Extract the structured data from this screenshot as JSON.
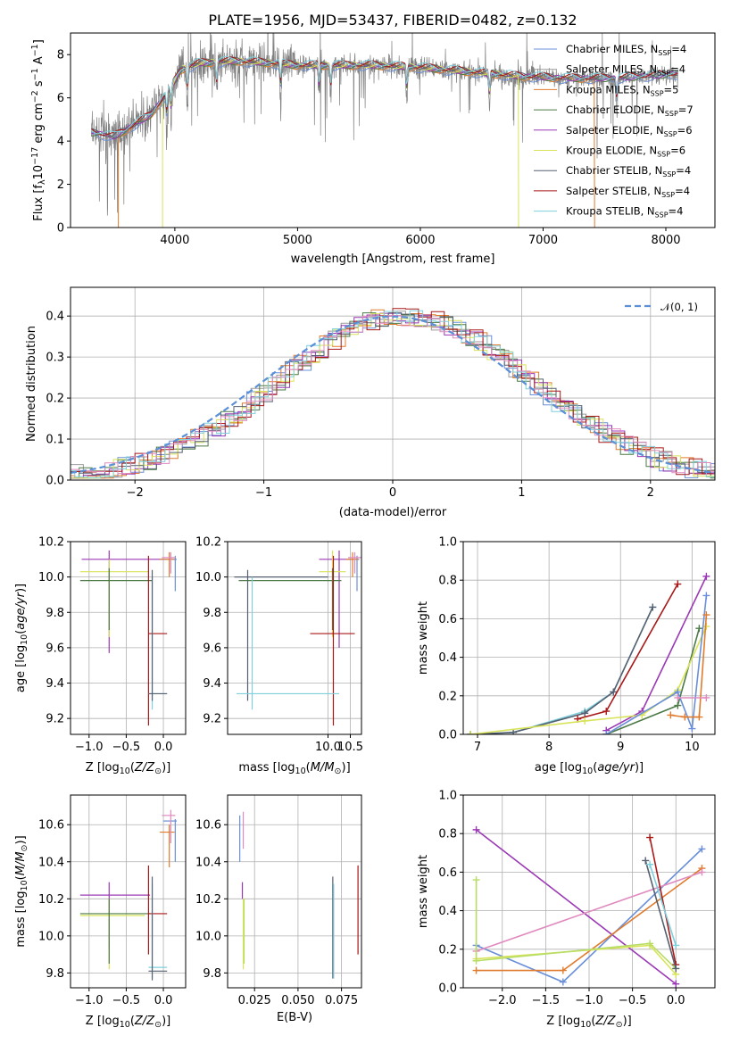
{
  "colors": {
    "Chabrier MILES": "#6a8fd8",
    "Salpeter MILES": "#9b9b9b",
    "Kroupa MILES": "#e07b2e",
    "Chabrier ELODIE": "#4d7a47",
    "Salpeter ELODIE": "#9b38b5",
    "Kroupa ELODIE": "#d8e35a",
    "Chabrier STELIB": "#556070",
    "Salpeter STELIB": "#a81818",
    "Kroupa STELIB": "#7fcfdc",
    "pink": "#e08bbf",
    "green2": "#b7dd66",
    "normal": "#5b8fd6"
  },
  "chart_data": [
    {
      "id": "spectrum",
      "type": "line",
      "title": "PLATE=1956, MJD=53437, FIBERID=0482, z=0.132",
      "xlabel": "wavelength [Angstrom, rest frame]",
      "ylabel": "Flux [f_λ 10^-17 erg cm^-2 s^-1 A^-1]",
      "xlim": [
        3150,
        8400
      ],
      "ylim": [
        0,
        9
      ],
      "xticks": [
        "4000",
        "5000",
        "6000",
        "7000",
        "8000"
      ],
      "yticks": [
        "0",
        "2",
        "4",
        "6",
        "8"
      ],
      "legend_position": "top-right",
      "legend": [
        {
          "name": "Chabrier MILES",
          "label": "Chabrier MILES, N",
          "sub": "SSP",
          "n": "=4"
        },
        {
          "name": "Salpeter MILES",
          "label": "Salpeter MILES, N",
          "sub": "SSP",
          "n": "=4"
        },
        {
          "name": "Kroupa MILES",
          "label": "Kroupa MILES, N",
          "sub": "SSP",
          "n": "=5"
        },
        {
          "name": "Chabrier ELODIE",
          "label": "Chabrier ELODIE, N",
          "sub": "SSP",
          "n": "=7"
        },
        {
          "name": "Salpeter ELODIE",
          "label": "Salpeter ELODIE, N",
          "sub": "SSP",
          "n": "=6"
        },
        {
          "name": "Kroupa ELODIE",
          "label": "Kroupa ELODIE, N",
          "sub": "SSP",
          "n": "=6"
        },
        {
          "name": "Chabrier STELIB",
          "label": "Chabrier STELIB, N",
          "sub": "SSP",
          "n": "=4"
        },
        {
          "name": "Salpeter STELIB",
          "label": "Salpeter STELIB, N",
          "sub": "SSP",
          "n": "=4"
        },
        {
          "name": "Kroupa STELIB",
          "label": "Kroupa STELIB, N",
          "sub": "SSP",
          "n": "=4"
        }
      ],
      "model_range": [
        {
          "name": "Kroupa MILES",
          "x": [
            3540,
            7420
          ]
        },
        {
          "name": "Kroupa ELODIE",
          "x": [
            3900,
            6800
          ]
        },
        {
          "name": "Kroupa STELIB",
          "x": [
            3320,
            8100
          ]
        }
      ],
      "continuum": [
        [
          3320,
          4.4
        ],
        [
          3500,
          4.2
        ],
        [
          3600,
          4.5
        ],
        [
          3800,
          5.2
        ],
        [
          3950,
          6.3
        ],
        [
          4050,
          7.3
        ],
        [
          4200,
          7.6
        ],
        [
          4500,
          7.7
        ],
        [
          4800,
          7.6
        ],
        [
          5000,
          7.5
        ],
        [
          5300,
          7.5
        ],
        [
          5600,
          7.5
        ],
        [
          6000,
          7.4
        ],
        [
          6400,
          7.2
        ],
        [
          6800,
          7.0
        ],
        [
          7200,
          6.9
        ],
        [
          7600,
          6.9
        ],
        [
          8100,
          7.1
        ]
      ]
    },
    {
      "id": "residuals",
      "type": "line",
      "xlabel": "(data-model)/error",
      "ylabel": "Normed distribution",
      "xlim": [
        -2.5,
        2.5
      ],
      "ylim": [
        0,
        0.47
      ],
      "xticks": [
        "−2",
        "−1",
        "0",
        "1",
        "2"
      ],
      "yticks": [
        "0.0",
        "0.1",
        "0.2",
        "0.3",
        "0.4"
      ],
      "legend": "𝒩(0, 1)",
      "legend_position": "top-right",
      "bin_width": 0.1
    },
    {
      "id": "age_vs_Z",
      "type": "scatter",
      "xlabel": "Z [log10(Z/Z⊙)]",
      "ylabel": "age [log10(age/yr)]",
      "xlim": [
        -1.25,
        0.3
      ],
      "ylim": [
        9.11,
        10.2
      ],
      "xticks": [
        "−1.0",
        "−0.5",
        "0.0"
      ],
      "yticks": [
        "9.2",
        "9.4",
        "9.6",
        "9.8",
        "10.0",
        "10.2"
      ],
      "points": [
        {
          "c": "Salpeter ELODIE",
          "x": -0.73,
          "xe": [
            -1.1,
            0.0
          ],
          "y": 10.1,
          "ye": [
            9.57,
            10.15
          ]
        },
        {
          "c": "Kroupa ELODIE",
          "x": -0.73,
          "xe": [
            -1.12,
            -0.2
          ],
          "y": 10.03,
          "ye": [
            9.66,
            10.1
          ]
        },
        {
          "c": "Chabrier ELODIE",
          "x": -0.73,
          "xe": [
            -1.12,
            -0.15
          ],
          "y": 9.98,
          "ye": [
            9.7,
            10.05
          ]
        },
        {
          "c": "Salpeter STELIB",
          "x": -0.2,
          "xe": [
            -0.2,
            0.05
          ],
          "y": 9.68,
          "ye": [
            9.16,
            10.12
          ]
        },
        {
          "c": "Kroupa STELIB",
          "x": -0.15,
          "xe": [
            -0.2,
            0.05
          ],
          "y": 9.34,
          "ye": [
            9.25,
            10.0
          ]
        },
        {
          "c": "Chabrier STELIB",
          "x": -0.15,
          "xe": [
            -0.2,
            0.05
          ],
          "y": 9.34,
          "ye": [
            9.3,
            10.04
          ]
        },
        {
          "c": "Chabrier MILES",
          "x": 0.16,
          "xe": [
            0.0,
            0.18
          ],
          "y": 10.1,
          "ye": [
            9.92,
            10.12
          ]
        },
        {
          "c": "Kroupa MILES",
          "x": 0.08,
          "xe": [
            -0.05,
            0.15
          ],
          "y": 10.1,
          "ye": [
            10.0,
            10.14
          ]
        },
        {
          "c": "pink",
          "x": 0.1,
          "xe": [
            -0.02,
            0.16
          ],
          "y": 10.11,
          "ye": [
            10.02,
            10.14
          ]
        }
      ]
    },
    {
      "id": "age_vs_mass",
      "type": "scatter",
      "xlabel": "mass [log10(M/M⊙)]",
      "ylabel": "",
      "xlim": [
        7.75,
        10.75
      ],
      "ylim": [
        9.11,
        10.2
      ],
      "xticks": [
        "10.0",
        "10.5"
      ],
      "yticks": [
        "9.2",
        "9.4",
        "9.6",
        "9.8",
        "10.0",
        "10.2"
      ],
      "points": [
        {
          "c": "Salpeter ELODIE",
          "x": 10.25,
          "xe": [
            9.8,
            10.5
          ],
          "y": 10.1,
          "ye": [
            9.6,
            10.15
          ]
        },
        {
          "c": "Kroupa ELODIE",
          "x": 10.1,
          "xe": [
            9.8,
            10.4
          ],
          "y": 10.03,
          "ye": [
            9.66,
            10.15
          ]
        },
        {
          "c": "Chabrier ELODIE",
          "x": 10.1,
          "xe": [
            8.0,
            10.3
          ],
          "y": 9.98,
          "ye": [
            9.7,
            10.05
          ]
        },
        {
          "c": "Chabrier STELIB",
          "x": 8.2,
          "xe": [
            7.9,
            10.0
          ],
          "y": 10.0,
          "ye": [
            9.3,
            10.04
          ]
        },
        {
          "c": "Salpeter STELIB",
          "x": 10.12,
          "xe": [
            9.6,
            10.6
          ],
          "y": 9.68,
          "ye": [
            9.16,
            10.12
          ]
        },
        {
          "c": "Kroupa STELIB",
          "x": 8.3,
          "xe": [
            7.95,
            10.25
          ],
          "y": 9.34,
          "ye": [
            9.25,
            10.0
          ]
        },
        {
          "c": "Chabrier MILES",
          "x": 10.65,
          "xe": [
            10.45,
            10.7
          ],
          "y": 10.1,
          "ye": [
            9.92,
            10.12
          ]
        },
        {
          "c": "Kroupa MILES",
          "x": 10.55,
          "xe": [
            10.4,
            10.68
          ],
          "y": 10.1,
          "ye": [
            10.0,
            10.14
          ]
        },
        {
          "c": "pink",
          "x": 10.6,
          "xe": [
            10.45,
            10.75
          ],
          "y": 10.11,
          "ye": [
            10.02,
            10.14
          ]
        }
      ]
    },
    {
      "id": "weight_vs_age",
      "type": "line",
      "xlabel": "age [log10(age/yr)]",
      "ylabel": "mass weight",
      "xlim": [
        6.8,
        10.32
      ],
      "ylim": [
        0,
        1.0
      ],
      "xticks": [
        "7",
        "8",
        "9",
        "10"
      ],
      "yticks": [
        "0.0",
        "0.2",
        "0.4",
        "0.6",
        "0.8",
        "1.0"
      ],
      "series": [
        {
          "c": "Kroupa STELIB",
          "x": [
            6.9,
            7.5,
            8.5,
            8.9,
            9.45
          ],
          "y": [
            0.0,
            0.01,
            0.12,
            0.22,
            0.66
          ]
        },
        {
          "c": "Chabrier STELIB",
          "x": [
            6.9,
            7.5,
            8.5,
            8.9,
            9.45
          ],
          "y": [
            0.0,
            0.01,
            0.11,
            0.22,
            0.66
          ]
        },
        {
          "c": "Salpeter STELIB",
          "x": [
            8.4,
            8.8,
            9.8
          ],
          "y": [
            0.08,
            0.12,
            0.78
          ]
        },
        {
          "c": "Salpeter ELODIE",
          "x": [
            8.8,
            9.3,
            10.2
          ],
          "y": [
            0.02,
            0.12,
            0.82
          ]
        },
        {
          "c": "Chabrier ELODIE",
          "x": [
            8.8,
            9.8,
            10.1
          ],
          "y": [
            0.0,
            0.15,
            0.55
          ]
        },
        {
          "c": "Kroupa ELODIE",
          "x": [
            6.9,
            8.5,
            9.3,
            9.8,
            10.2
          ],
          "y": [
            0.0,
            0.07,
            0.1,
            0.23,
            0.56
          ]
        },
        {
          "c": "Chabrier MILES",
          "x": [
            8.8,
            9.8,
            10.0,
            10.2
          ],
          "y": [
            0.0,
            0.22,
            0.03,
            0.72
          ]
        },
        {
          "c": "Kroupa MILES",
          "x": [
            9.7,
            9.9,
            10.1,
            10.2
          ],
          "y": [
            0.1,
            0.09,
            0.09,
            0.62
          ]
        },
        {
          "c": "pink",
          "x": [
            9.8,
            10.2
          ],
          "y": [
            0.19,
            0.19
          ]
        }
      ]
    },
    {
      "id": "mass_vs_Z",
      "type": "scatter",
      "xlabel": "Z [log10(Z/Z⊙)]",
      "ylabel": "mass [log10(M/M⊙)]",
      "xlim": [
        -1.25,
        0.3
      ],
      "ylim": [
        9.72,
        10.76
      ],
      "xticks": [
        "−1.0",
        "−0.5",
        "0.0"
      ],
      "yticks": [
        "9.8",
        "10.0",
        "10.2",
        "10.4",
        "10.6"
      ],
      "points": [
        {
          "c": "Salpeter ELODIE",
          "x": -0.73,
          "xe": [
            -1.12,
            -0.18
          ],
          "y": 10.22,
          "ye": [
            9.93,
            10.29
          ]
        },
        {
          "c": "Kroupa ELODIE",
          "x": -0.73,
          "xe": [
            -1.12,
            -0.25
          ],
          "y": 10.11,
          "ye": [
            9.82,
            10.2
          ]
        },
        {
          "c": "Chabrier ELODIE",
          "x": -0.73,
          "xe": [
            -1.12,
            -0.18
          ],
          "y": 10.12,
          "ye": [
            9.85,
            10.2
          ]
        },
        {
          "c": "Salpeter STELIB",
          "x": -0.2,
          "xe": [
            -0.2,
            0.05
          ],
          "y": 10.12,
          "ye": [
            9.9,
            10.38
          ]
        },
        {
          "c": "Kroupa STELIB",
          "x": -0.15,
          "xe": [
            -0.2,
            0.05
          ],
          "y": 9.83,
          "ye": [
            9.77,
            10.28
          ]
        },
        {
          "c": "Chabrier STELIB",
          "x": -0.15,
          "xe": [
            -0.2,
            0.05
          ],
          "y": 9.81,
          "ye": [
            9.76,
            10.32
          ]
        },
        {
          "c": "Chabrier MILES",
          "x": 0.16,
          "xe": [
            0.0,
            0.18
          ],
          "y": 10.62,
          "ye": [
            10.4,
            10.63
          ]
        },
        {
          "c": "Kroupa MILES",
          "x": 0.08,
          "xe": [
            -0.05,
            0.15
          ],
          "y": 10.56,
          "ye": [
            10.37,
            10.6
          ]
        },
        {
          "c": "pink",
          "x": 0.1,
          "xe": [
            -0.02,
            0.16
          ],
          "y": 10.65,
          "ye": [
            10.5,
            10.68
          ]
        }
      ]
    },
    {
      "id": "mass_vs_EBV",
      "type": "scatter",
      "xlabel": "E(B-V)",
      "ylabel": "",
      "xlim": [
        0.0095,
        0.0865
      ],
      "ylim": [
        9.72,
        10.76
      ],
      "xticks": [
        "0.025",
        "0.050",
        "0.075"
      ],
      "yticks": [
        "9.8",
        "10.0",
        "10.2",
        "10.4",
        "10.6"
      ],
      "points": [
        {
          "c": "Chabrier MILES",
          "x": 0.0165,
          "ye": [
            10.4,
            10.65
          ]
        },
        {
          "c": "pink",
          "x": 0.0185,
          "ye": [
            10.47,
            10.67
          ]
        },
        {
          "c": "Salpeter ELODIE",
          "x": 0.018,
          "ye": [
            10.2,
            10.29
          ]
        },
        {
          "c": "Kroupa ELODIE",
          "x": 0.0185,
          "ye": [
            9.82,
            10.2
          ]
        },
        {
          "c": "green2",
          "x": 0.019,
          "ye": [
            9.85,
            10.2
          ]
        },
        {
          "c": "Chabrier STELIB",
          "x": 0.07,
          "ye": [
            9.77,
            10.32
          ]
        },
        {
          "c": "Kroupa STELIB",
          "x": 0.0705,
          "ye": [
            9.77,
            10.28
          ]
        },
        {
          "c": "Salpeter STELIB",
          "x": 0.0845,
          "ye": [
            9.9,
            10.38
          ]
        }
      ]
    },
    {
      "id": "weight_vs_Z",
      "type": "line",
      "xlabel": "Z [log10(Z/Z⊙)]",
      "ylabel": "mass weight",
      "xlim": [
        -2.45,
        0.45
      ],
      "ylim": [
        0,
        1.0
      ],
      "xticks": [
        "−2.0",
        "−1.5",
        "−1.0",
        "−0.5",
        "0.0"
      ],
      "yticks": [
        "0.0",
        "0.2",
        "0.4",
        "0.6",
        "0.8",
        "1.0"
      ],
      "series": [
        {
          "c": "Salpeter ELODIE",
          "x": [
            -2.3,
            0.0
          ],
          "y": [
            0.82,
            0.02
          ]
        },
        {
          "c": "Chabrier MILES",
          "x": [
            -2.3,
            -1.3,
            0.3
          ],
          "y": [
            0.22,
            0.03,
            0.72
          ]
        },
        {
          "c": "Kroupa MILES",
          "x": [
            -2.3,
            -1.3,
            0.3
          ],
          "y": [
            0.09,
            0.09,
            0.62
          ]
        },
        {
          "c": "pink",
          "x": [
            -2.3,
            0.3
          ],
          "y": [
            0.19,
            0.6
          ]
        },
        {
          "c": "Kroupa ELODIE",
          "x": [
            -2.3,
            -0.3,
            0.0
          ],
          "y": [
            0.15,
            0.22,
            0.07
          ]
        },
        {
          "c": "green2",
          "x": [
            -2.3,
            -2.3,
            -0.3,
            0.0
          ],
          "y": [
            0.56,
            0.14,
            0.23,
            0.1
          ]
        },
        {
          "c": "Salpeter STELIB",
          "x": [
            -0.3,
            0.0
          ],
          "y": [
            0.78,
            0.12
          ]
        },
        {
          "c": "Chabrier STELIB",
          "x": [
            -0.35,
            0.0
          ],
          "y": [
            0.66,
            0.1
          ]
        },
        {
          "c": "Kroupa STELIB",
          "x": [
            -0.3,
            0.0
          ],
          "y": [
            0.64,
            0.22
          ]
        }
      ]
    }
  ]
}
